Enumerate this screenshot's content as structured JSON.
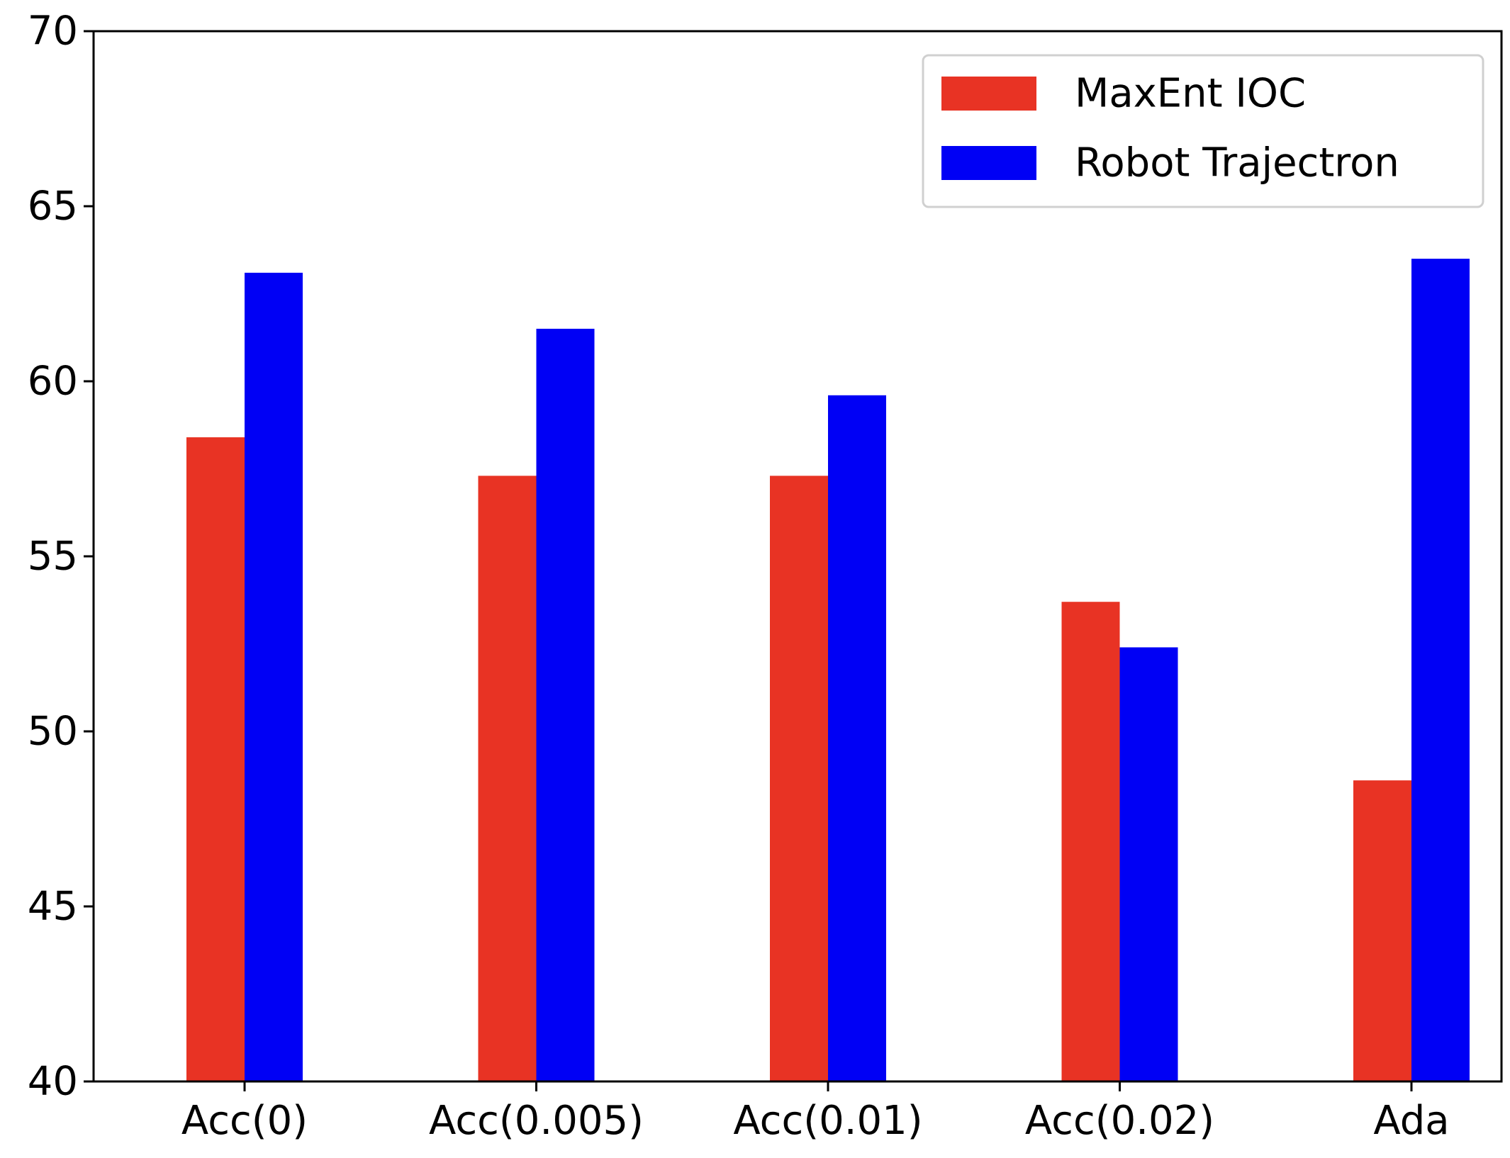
{
  "chart_data": {
    "type": "bar",
    "title": "",
    "xlabel": "",
    "ylabel": "",
    "categories": [
      "Acc(0)",
      "Acc(0.005)",
      "Acc(0.01)",
      "Acc(0.02)",
      "Ada"
    ],
    "ylim": [
      40,
      70
    ],
    "yticks": [
      40,
      45,
      50,
      55,
      60,
      65,
      70
    ],
    "grid": false,
    "legend_position": "top-right",
    "series": [
      {
        "name": "MaxEnt IOC",
        "color": "#e83324",
        "values": [
          58.4,
          57.3,
          57.3,
          53.7,
          48.6
        ]
      },
      {
        "name": "Robot Trajectron",
        "color": "#0000f5",
        "values": [
          63.1,
          61.5,
          59.6,
          52.4,
          63.5
        ]
      }
    ]
  }
}
